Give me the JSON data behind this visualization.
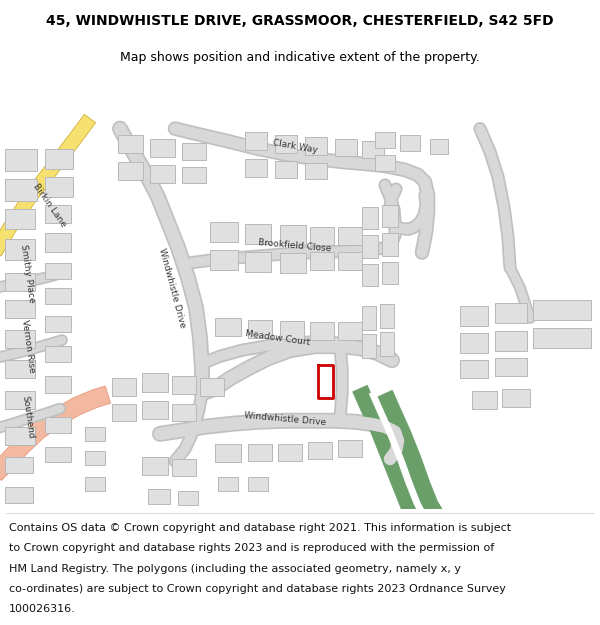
{
  "title_line1": "45, WINDWHISTLE DRIVE, GRASSMOOR, CHESTERFIELD, S42 5FD",
  "title_line2": "Map shows position and indicative extent of the property.",
  "footer_lines": [
    "Contains OS data © Crown copyright and database right 2021. This information is subject",
    "to Crown copyright and database rights 2023 and is reproduced with the permission of",
    "HM Land Registry. The polygons (including the associated geometry, namely x, y",
    "co-ordinates) are subject to Crown copyright and database rights 2023 Ordnance Survey",
    "100026316."
  ],
  "map_bg": "#ffffff",
  "road_fill": "#d8d8d8",
  "road_edge": "#c0c0c0",
  "building_fill": "#e0e0e0",
  "building_edge": "#b8b8b8",
  "green_color": "#6a9f6a",
  "highlight_red": "#cc0000",
  "birkin_fill": "#f5e070",
  "birkin_edge": "#c8a820",
  "salmon_fill": "#f2b8a0",
  "salmon_edge": "#e89070",
  "label_color": "#333333",
  "label_size": 6.5,
  "title_size": 10,
  "subtitle_size": 9,
  "footer_size": 8
}
